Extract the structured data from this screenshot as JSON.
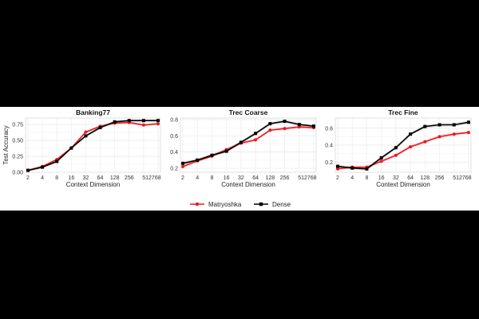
{
  "figure": {
    "ylabel": "Test Accuracy",
    "legend": [
      {
        "name": "Matryoshka",
        "color": "#e8191f",
        "marker": "circle"
      },
      {
        "name": "Dense",
        "color": "#000000",
        "marker": "square"
      }
    ]
  },
  "chart_data": [
    {
      "type": "line",
      "title": "Banking77",
      "xlabel": "Context Dimension",
      "ylabel": "Test Accuracy",
      "x": [
        "2",
        "4",
        "8",
        "16",
        "32",
        "64",
        "128",
        "256",
        "512",
        "768"
      ],
      "xtick_labels": [
        "2",
        "4",
        "8",
        "16",
        "32",
        "64",
        "128",
        "256",
        "512768"
      ],
      "ylim": [
        0.0,
        0.85
      ],
      "yticks": [
        "0.00",
        "0.25",
        "0.50",
        "0.75"
      ],
      "ytick_values": [
        0.0,
        0.25,
        0.5,
        0.75
      ],
      "series": [
        {
          "name": "Matryoshka",
          "color": "#e8191f",
          "values": [
            0.03,
            0.09,
            0.2,
            0.38,
            0.63,
            0.72,
            0.77,
            0.78,
            0.74,
            0.76
          ]
        },
        {
          "name": "Dense",
          "color": "#000000",
          "values": [
            0.03,
            0.08,
            0.17,
            0.38,
            0.57,
            0.7,
            0.79,
            0.81,
            0.81,
            0.81
          ]
        }
      ]
    },
    {
      "type": "line",
      "title": "Trec Coarse",
      "xlabel": "Context Dimension",
      "ylabel": "",
      "x": [
        "2",
        "4",
        "8",
        "16",
        "32",
        "64",
        "128",
        "256",
        "512",
        "768"
      ],
      "xtick_labels": [
        "2",
        "4",
        "8",
        "16",
        "32",
        "64",
        "128",
        "256",
        "512768"
      ],
      "ylim": [
        0.15,
        0.82
      ],
      "yticks": [
        "0.2",
        "0.4",
        "0.6",
        "0.8"
      ],
      "ytick_values": [
        0.2,
        0.4,
        0.6,
        0.8
      ],
      "series": [
        {
          "name": "Matryoshka",
          "color": "#e8191f",
          "values": [
            0.22,
            0.29,
            0.35,
            0.43,
            0.51,
            0.55,
            0.67,
            0.69,
            0.71,
            0.7
          ]
        },
        {
          "name": "Dense",
          "color": "#000000",
          "values": [
            0.26,
            0.3,
            0.36,
            0.41,
            0.52,
            0.63,
            0.75,
            0.78,
            0.74,
            0.72
          ]
        }
      ]
    },
    {
      "type": "line",
      "title": "Trec Fine",
      "xlabel": "Context Dimension",
      "ylabel": "",
      "x": [
        "2",
        "4",
        "8",
        "16",
        "32",
        "64",
        "128",
        "256",
        "512",
        "768"
      ],
      "xtick_labels": [
        "2",
        "4",
        "8",
        "16",
        "32",
        "64",
        "128",
        "256",
        "512768"
      ],
      "ylim": [
        0.08,
        0.72
      ],
      "yticks": [
        "0.2",
        "0.4",
        "0.6"
      ],
      "ytick_values": [
        0.2,
        0.4,
        0.6
      ],
      "series": [
        {
          "name": "Matryoshka",
          "color": "#e8191f",
          "values": [
            0.12,
            0.14,
            0.14,
            0.21,
            0.28,
            0.38,
            0.44,
            0.5,
            0.53,
            0.55
          ]
        },
        {
          "name": "Dense",
          "color": "#000000",
          "values": [
            0.15,
            0.13,
            0.12,
            0.25,
            0.37,
            0.53,
            0.62,
            0.64,
            0.64,
            0.67
          ]
        }
      ]
    }
  ]
}
